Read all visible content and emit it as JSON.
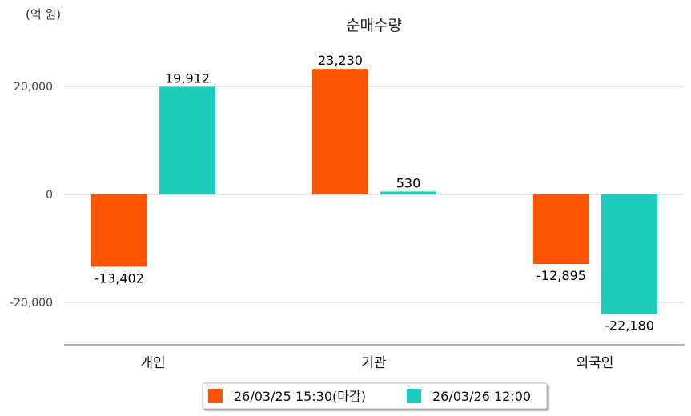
{
  "chart_data": {
    "type": "bar",
    "title": "순매수량",
    "unit_label": "(억 원)",
    "categories": [
      "개인",
      "기관",
      "외국인"
    ],
    "series": [
      {
        "name": "26/03/25 15:30(마감)",
        "color": "#ff5500",
        "values": [
          -13402,
          23230,
          -12895
        ],
        "labels": [
          "-13,402",
          "23,230",
          "-12,895"
        ]
      },
      {
        "name": "26/03/26 12:00",
        "color": "#1ccdbb",
        "values": [
          19912,
          530,
          -22180
        ],
        "labels": [
          "19,912",
          "530",
          "-22,180"
        ]
      }
    ],
    "yticks": [
      20000,
      0,
      -20000
    ],
    "ytick_labels": [
      "20,000",
      "0",
      "-20,000"
    ],
    "ylim": [
      -27800,
      28000
    ],
    "grid": true,
    "legend_position": "bottom"
  }
}
